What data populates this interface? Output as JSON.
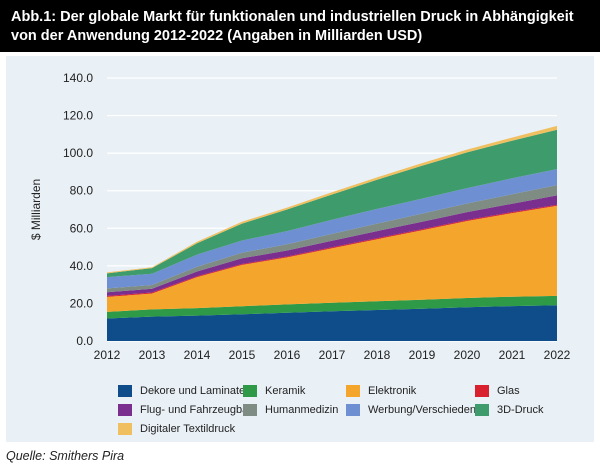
{
  "title": "Abb.1: Der globale Markt für funktionalen und industriellen Druck in Abhängigkeit von der Anwendung 2012-2022 (Angaben in Milliarden USD)",
  "source": "Quelle: Smithers Pira",
  "chart_data": {
    "type": "area",
    "stacked": true,
    "title": "Abb.1: Der globale Markt für funktionalen und industriellen Druck in Abhängigkeit von der Anwendung 2012-2022 (Angaben in Milliarden USD)",
    "xlabel": "",
    "ylabel": "$ Milliarden",
    "x": [
      "2012",
      "2013",
      "2014",
      "2015",
      "2016",
      "2017",
      "2018",
      "2019",
      "2020",
      "2021",
      "2022"
    ],
    "ylim": [
      0,
      140
    ],
    "yticks": [
      "0.0",
      "20.0",
      "40.0",
      "60.0",
      "80.0",
      "100.0",
      "120.0",
      "140.0"
    ],
    "grid": true,
    "legend_position": "bottom",
    "series": [
      {
        "name": "Dekore und Laminate",
        "color": "#0f4c8a",
        "values": [
          12,
          13,
          13.5,
          14.2,
          15,
          15.8,
          16.5,
          17.2,
          18,
          18.6,
          19
        ]
      },
      {
        "name": "Keramik",
        "color": "#2e9a48",
        "values": [
          3.5,
          3.8,
          4.0,
          4.3,
          4.5,
          4.6,
          4.7,
          4.8,
          4.9,
          5.0,
          5.0
        ]
      },
      {
        "name": "Elektronik",
        "color": "#f4a52c",
        "values": [
          8,
          8.5,
          16.5,
          22,
          25,
          29,
          33,
          37,
          41,
          44.5,
          48
        ]
      },
      {
        "name": "Glas",
        "color": "#d9202f",
        "values": [
          0.5,
          0.5,
          0.5,
          0.5,
          0.5,
          0.5,
          0.5,
          0.5,
          0.5,
          0.5,
          0.5
        ]
      },
      {
        "name": "Flug- und Fahrzeugbau",
        "color": "#7a2f8f",
        "values": [
          2,
          2,
          2.5,
          3,
          3.2,
          3.5,
          3.8,
          4,
          4.2,
          4.5,
          5
        ]
      },
      {
        "name": "Humanmedizin",
        "color": "#7e8c84",
        "values": [
          2,
          2,
          2.5,
          3,
          3.3,
          3.6,
          4,
          4.3,
          4.6,
          5,
          5.5
        ]
      },
      {
        "name": "Werbung/Verschiedenes",
        "color": "#6e8fd1",
        "values": [
          6,
          6,
          6.5,
          6.5,
          7,
          7.5,
          7.8,
          8,
          8.2,
          8.5,
          8.5
        ]
      },
      {
        "name": "3D-Druck",
        "color": "#3e9b6b",
        "values": [
          2,
          3,
          6,
          9,
          11.5,
          13.5,
          15.5,
          17.5,
          19,
          20,
          21
        ]
      },
      {
        "name": "Digitaler Textildruck",
        "color": "#f0c060",
        "values": [
          0.5,
          0.5,
          0.8,
          1,
          1,
          1.2,
          1.3,
          1.4,
          1.5,
          1.7,
          2
        ]
      }
    ]
  }
}
